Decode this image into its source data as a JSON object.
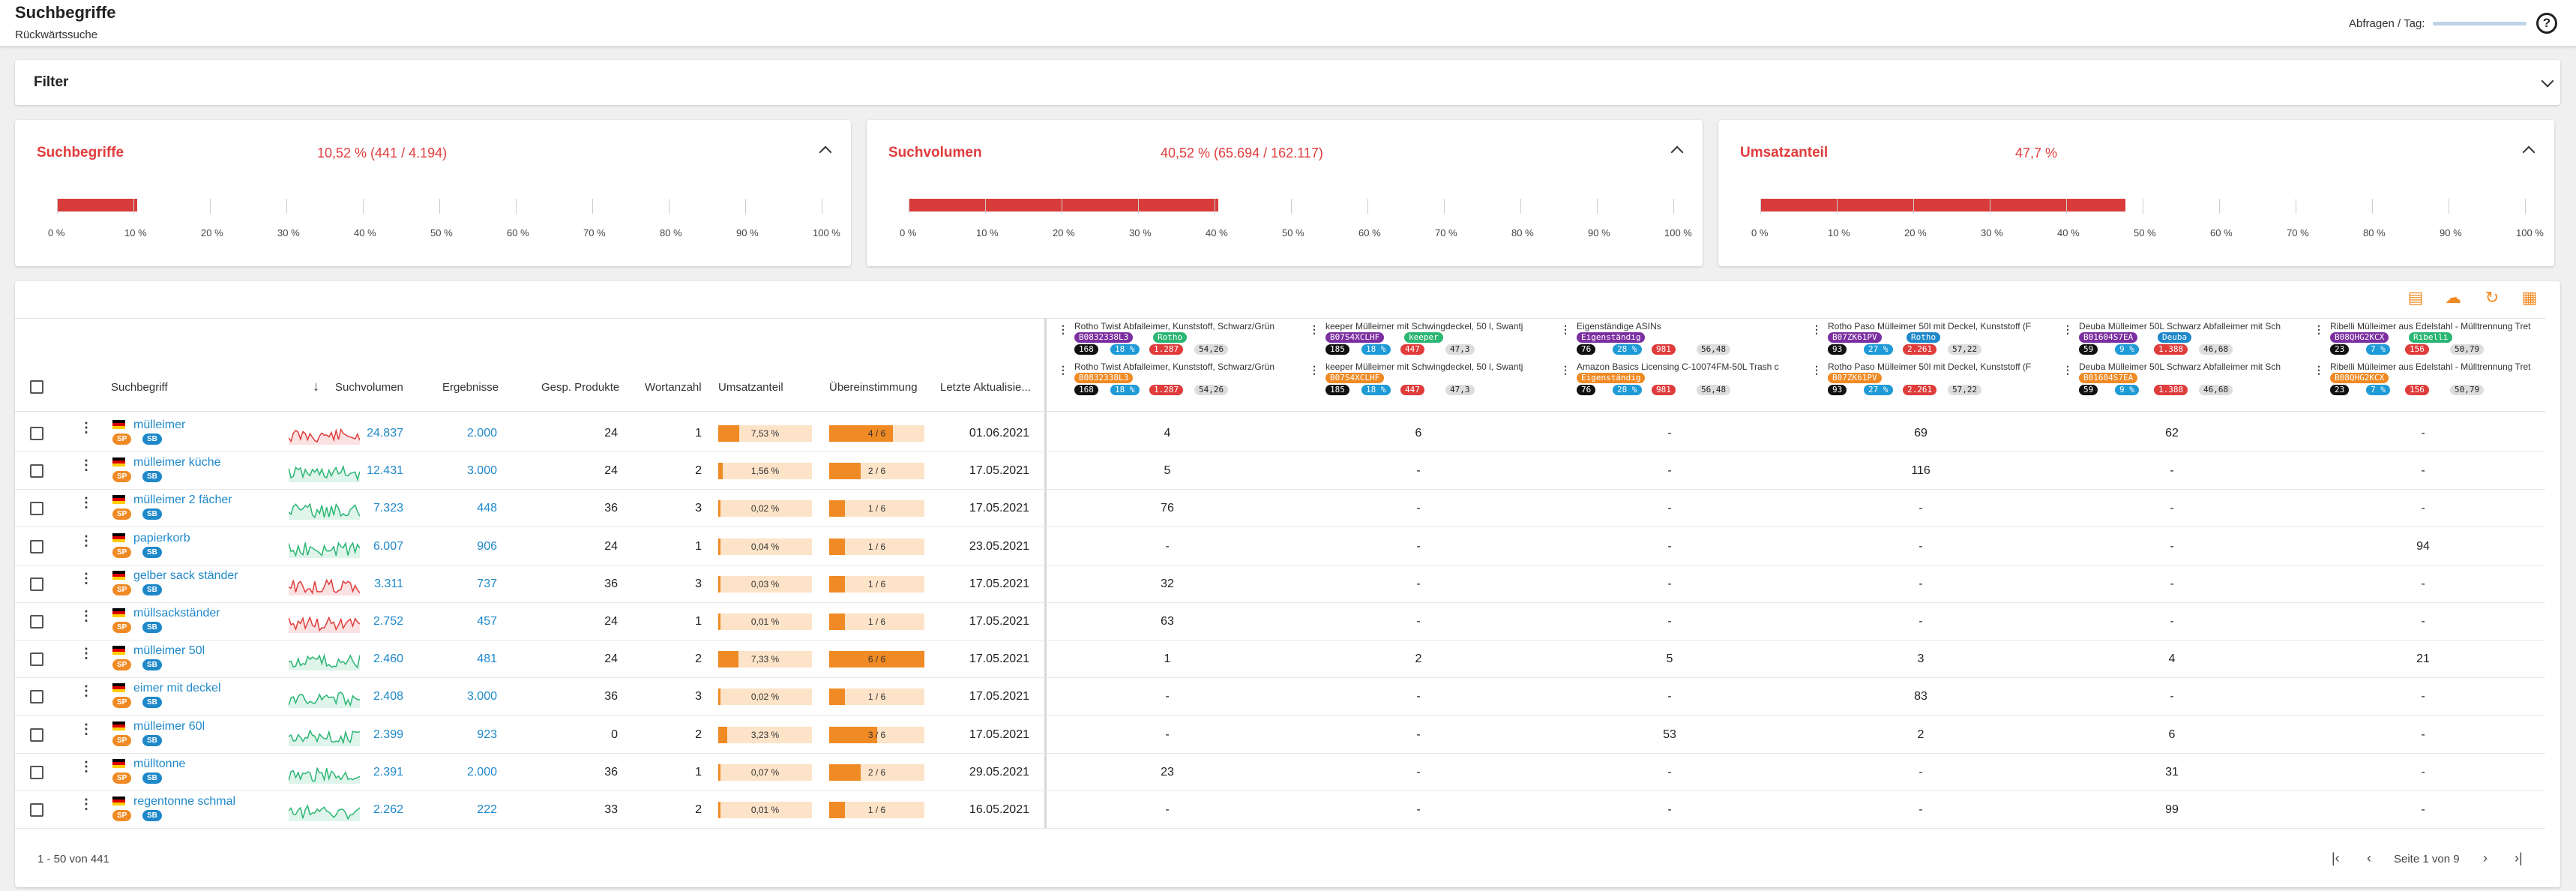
{
  "header": {
    "title": "Suchbegriffe",
    "subtitle": "Rückwärtssuche",
    "quota_label": "Abfragen / Tag:"
  },
  "filter": {
    "title": "Filter"
  },
  "stats": [
    {
      "title": "Suchbegriffe",
      "value": "10,52 % (441 / 4.194)",
      "percent": 10.52
    },
    {
      "title": "Suchvolumen",
      "value": "40,52 % (65.694 / 162.117)",
      "percent": 40.52
    },
    {
      "title": "Umsatzanteil",
      "value": "47,7 %",
      "percent": 47.7
    }
  ],
  "axis_ticks": [
    "0 %",
    "10 %",
    "20 %",
    "30 %",
    "40 %",
    "50 %",
    "60 %",
    "70 %",
    "80 %",
    "90 %",
    "100 %"
  ],
  "columns": {
    "suchbegriff": "Suchbegriff",
    "suchvolumen": "Suchvolumen",
    "ergebnisse": "Ergebnisse",
    "gesp": "Gesp. Produkte",
    "wortanzahl": "Wortanzahl",
    "umsatzanteil": "Umsatzanteil",
    "uebereinstimmung": "Übereinstimmung",
    "aktualisiert": "Letzte Aktualisie..."
  },
  "asins": [
    {
      "name1": "Rotho Twist Abfalleimer, Kunststoff, Schwarz/Grün",
      "code1": "B0832338L3",
      "brand1": "Rotho",
      "name2": "Rotho Twist Abfalleimer, Kunststoff, Schwarz/Grün",
      "code2": "B0832338L3",
      "brand2": "",
      "n": "168",
      "p": "18 %",
      "r": "1.287",
      "s": "54,26"
    },
    {
      "name1": "keeper Mülleimer mit Schwingdeckel, 50 l, Swantj",
      "code1": "B07S4XCLHF",
      "brand1": "keeper",
      "name2": "keeper Mülleimer mit Schwingdeckel, 50 l, Swantj",
      "code2": "B07S4XCLHF",
      "brand2": "",
      "n": "185",
      "p": "18 %",
      "r": "447",
      "s": "47,3"
    },
    {
      "name1": "Eigenständige ASINs",
      "code1": "Eigenständig",
      "brand1": "",
      "name2": "Amazon Basics Licensing C-10074FM-50L Trash c",
      "code2": "Eigenständig",
      "brand2": "",
      "n": "76",
      "p": "28 %",
      "r": "981",
      "s": "56,48"
    },
    {
      "name1": "Rotho Paso Mülleimer 50l mit Deckel, Kunststoff (F",
      "code1": "B07ZK61PV",
      "brand1": "Rotho",
      "name2": "Rotho Paso Mülleimer 50l mit Deckel, Kunststoff (F",
      "code2": "B07ZK61PV",
      "brand2": "",
      "n": "93",
      "p": "27 %",
      "r": "2.261",
      "s": "57,22"
    },
    {
      "name1": "Deuba Mülleimer 50L Schwarz Abfalleimer mit Sch",
      "code1": "B01604S7EA",
      "brand1": "Deuba",
      "name2": "Deuba Mülleimer 50L Schwarz Abfalleimer mit Sch",
      "code2": "B01604S7EA",
      "brand2": "",
      "n": "59",
      "p": "9 %",
      "r": "1.388",
      "s": "46,68"
    },
    {
      "name1": "Ribelli Mülleimer aus Edelstahl - Mülltrennung Tret",
      "code1": "B08QHG2KCX",
      "brand1": "Ribelli",
      "name2": "Ribelli Mülleimer aus Edelstahl - Mülltrennung Tret",
      "code2": "B08QHG2KCX",
      "brand2": "",
      "n": "23",
      "p": "7 %",
      "r": "156",
      "s": "50,79"
    }
  ],
  "rows": [
    {
      "keyword": "mülleimer",
      "volume": "24.837",
      "results": "2.000",
      "gesp": "24",
      "words": "1",
      "share": "7,53 %",
      "share_pct": 7.53,
      "match": "4 / 6",
      "match_frac": 0.667,
      "date": "01.06.2021",
      "trend": "red",
      "asin": [
        "4",
        "6",
        "-",
        "69",
        "62",
        "-"
      ]
    },
    {
      "keyword": "mülleimer küche",
      "volume": "12.431",
      "results": "3.000",
      "gesp": "24",
      "words": "2",
      "share": "1,56 %",
      "share_pct": 1.56,
      "match": "2 / 6",
      "match_frac": 0.333,
      "date": "17.05.2021",
      "trend": "green",
      "asin": [
        "5",
        "-",
        "-",
        "116",
        "-",
        "-"
      ]
    },
    {
      "keyword": "mülleimer 2 fächer",
      "volume": "7.323",
      "results": "448",
      "gesp": "36",
      "words": "3",
      "share": "0,02 %",
      "share_pct": 0.02,
      "match": "1 / 6",
      "match_frac": 0.167,
      "date": "17.05.2021",
      "trend": "green",
      "asin": [
        "76",
        "-",
        "-",
        "-",
        "-",
        "-"
      ]
    },
    {
      "keyword": "papierkorb",
      "volume": "6.007",
      "results": "906",
      "gesp": "24",
      "words": "1",
      "share": "0,04 %",
      "share_pct": 0.04,
      "match": "1 / 6",
      "match_frac": 0.167,
      "date": "23.05.2021",
      "trend": "green",
      "asin": [
        "-",
        "-",
        "-",
        "-",
        "-",
        "94"
      ]
    },
    {
      "keyword": "gelber sack ständer",
      "volume": "3.311",
      "results": "737",
      "gesp": "36",
      "words": "3",
      "share": "0,03 %",
      "share_pct": 0.03,
      "match": "1 / 6",
      "match_frac": 0.167,
      "date": "17.05.2021",
      "trend": "red",
      "asin": [
        "32",
        "-",
        "-",
        "-",
        "-",
        "-"
      ]
    },
    {
      "keyword": "müllsackständer",
      "volume": "2.752",
      "results": "457",
      "gesp": "24",
      "words": "1",
      "share": "0,01 %",
      "share_pct": 0.01,
      "match": "1 / 6",
      "match_frac": 0.167,
      "date": "17.05.2021",
      "trend": "red",
      "asin": [
        "63",
        "-",
        "-",
        "-",
        "-",
        "-"
      ]
    },
    {
      "keyword": "mülleimer 50l",
      "volume": "2.460",
      "results": "481",
      "gesp": "24",
      "words": "2",
      "share": "7,33 %",
      "share_pct": 7.33,
      "match": "6 / 6",
      "match_frac": 1.0,
      "date": "17.05.2021",
      "trend": "green",
      "asin": [
        "1",
        "2",
        "5",
        "3",
        "4",
        "21"
      ]
    },
    {
      "keyword": "eimer mit deckel",
      "volume": "2.408",
      "results": "3.000",
      "gesp": "36",
      "words": "3",
      "share": "0,02 %",
      "share_pct": 0.02,
      "match": "1 / 6",
      "match_frac": 0.167,
      "date": "17.05.2021",
      "trend": "green",
      "asin": [
        "-",
        "-",
        "-",
        "83",
        "-",
        "-"
      ]
    },
    {
      "keyword": "mülleimer 60l",
      "volume": "2.399",
      "results": "923",
      "gesp": "0",
      "words": "2",
      "share": "3,23 %",
      "share_pct": 3.23,
      "match": "3 / 6",
      "match_frac": 0.5,
      "date": "17.05.2021",
      "trend": "green",
      "asin": [
        "-",
        "-",
        "53",
        "2",
        "6",
        "-"
      ]
    },
    {
      "keyword": "mülltonne",
      "volume": "2.391",
      "results": "2.000",
      "gesp": "36",
      "words": "1",
      "share": "0,07 %",
      "share_pct": 0.07,
      "match": "2 / 6",
      "match_frac": 0.333,
      "date": "29.05.2021",
      "trend": "green",
      "asin": [
        "23",
        "-",
        "-",
        "-",
        "31",
        "-"
      ]
    },
    {
      "keyword": "regentonne schmal",
      "volume": "2.262",
      "results": "222",
      "gesp": "33",
      "words": "2",
      "share": "0,01 %",
      "share_pct": 0.01,
      "match": "1 / 6",
      "match_frac": 0.167,
      "date": "16.05.2021",
      "trend": "green",
      "asin": [
        "-",
        "-",
        "-",
        "-",
        "99",
        "-"
      ]
    }
  ],
  "badges": {
    "sp": "SP",
    "sb": "SB"
  },
  "footer": {
    "range": "1 - 50 von 441",
    "page": "Seite 1 von 9"
  }
}
